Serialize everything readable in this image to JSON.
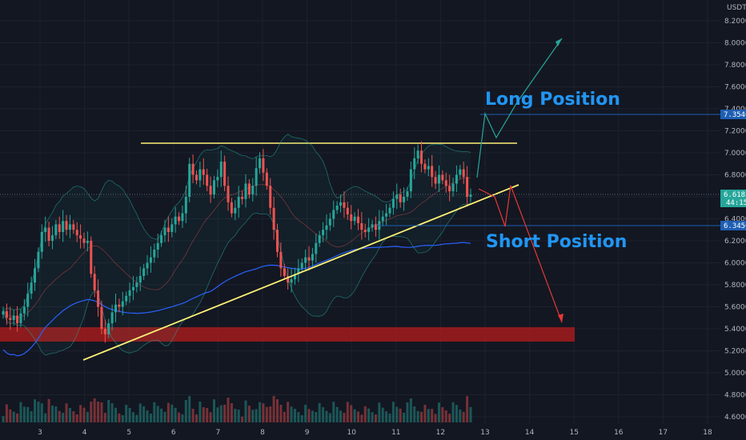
{
  "chart_data": {
    "type": "candlestick",
    "currency": "USDT",
    "ylim": [
      4.56,
      8.38
    ],
    "x_ticks": [
      "3",
      "4",
      "5",
      "6",
      "7",
      "8",
      "9",
      "10",
      "11",
      "12",
      "13",
      "14",
      "15",
      "16",
      "17",
      "18"
    ],
    "y_ticks": [
      "8.2000",
      "8.0000",
      "7.8000",
      "7.6000",
      "7.4000",
      "7.2000",
      "7.0000",
      "6.8000",
      "6.6000",
      "6.4000",
      "6.2000",
      "6.0000",
      "5.8000",
      "5.6000",
      "5.4000",
      "5.2000",
      "5.0000",
      "4.8000",
      "4.6000"
    ],
    "price_tags": [
      {
        "value": "7.3540",
        "level": 7.354,
        "color": "#1e5fb4"
      },
      {
        "value": "6.6182",
        "level": 6.618,
        "color": "#26a69a"
      },
      {
        "value": "6.3450",
        "level": 6.345,
        "color": "#1e5fb4"
      }
    ],
    "countdown": "44:15",
    "annotations": [
      {
        "text": "Long Position",
        "color": "#2196f3"
      },
      {
        "text": "Short Position",
        "color": "#2196f3"
      }
    ],
    "support_zone": [
      5.3,
      5.43
    ],
    "resistance_level": 7.09,
    "trendline": {
      "from": [
        4.05,
        5.12
      ],
      "to": [
        13.7,
        6.72
      ]
    },
    "close_series": [
      5.56,
      5.5,
      5.48,
      5.52,
      5.45,
      5.54,
      5.6,
      5.72,
      5.82,
      5.95,
      6.1,
      6.28,
      6.32,
      6.2,
      6.25,
      6.35,
      6.28,
      6.38,
      6.3,
      6.35,
      6.3,
      6.25,
      6.22,
      6.18,
      6.2,
      5.9,
      5.75,
      5.6,
      5.4,
      5.35,
      5.45,
      5.55,
      5.62,
      5.6,
      5.65,
      5.7,
      5.75,
      5.78,
      5.82,
      5.88,
      5.95,
      6.0,
      6.05,
      6.12,
      6.18,
      6.25,
      6.32,
      6.28,
      6.35,
      6.42,
      6.38,
      6.45,
      6.6,
      6.9,
      6.8,
      6.75,
      6.85,
      6.8,
      6.7,
      6.62,
      6.75,
      6.78,
      6.92,
      6.7,
      6.55,
      6.45,
      6.5,
      6.6,
      6.58,
      6.72,
      6.62,
      6.7,
      6.86,
      6.95,
      6.82,
      6.7,
      6.5,
      6.3,
      6.1,
      5.95,
      5.88,
      5.82,
      5.85,
      5.9,
      5.95,
      6.0,
      6.05,
      6.02,
      6.08,
      6.18,
      6.25,
      6.3,
      6.34,
      6.4,
      6.48,
      6.52,
      6.55,
      6.5,
      6.44,
      6.38,
      6.42,
      6.36,
      6.3,
      6.28,
      6.32,
      6.35,
      6.3,
      6.38,
      6.42,
      6.45,
      6.5,
      6.58,
      6.62,
      6.55,
      6.6,
      6.65,
      6.85,
      6.95,
      7.02,
      6.9,
      6.85,
      6.88,
      6.78,
      6.72,
      6.8,
      6.75,
      6.7,
      6.65,
      6.72,
      6.8,
      6.85,
      6.78,
      6.6,
      6.62
    ]
  }
}
